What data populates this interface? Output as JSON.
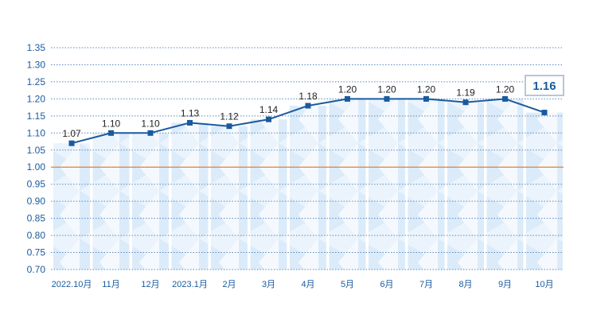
{
  "chart_data": {
    "type": "line",
    "categories": [
      "2022.10月",
      "11月",
      "12月",
      "2023.1月",
      "2月",
      "3月",
      "4月",
      "5月",
      "6月",
      "7月",
      "8月",
      "9月",
      "10月"
    ],
    "values": [
      1.07,
      1.1,
      1.1,
      1.13,
      1.12,
      1.14,
      1.18,
      1.2,
      1.2,
      1.2,
      1.19,
      1.2,
      1.16
    ],
    "data_labels": [
      "1.07",
      "1.10",
      "1.10",
      "1.13",
      "1.12",
      "1.14",
      "1.18",
      "1.20",
      "1.20",
      "1.20",
      "1.19",
      "1.20",
      "1.16"
    ],
    "y_ticks": [
      "1.35",
      "1.30",
      "1.25",
      "1.20",
      "1.15",
      "1.10",
      "1.05",
      "1.00",
      "0.95",
      "0.90",
      "0.85",
      "0.80",
      "0.75",
      "0.70"
    ],
    "ylim": [
      0.7,
      1.35
    ],
    "reference_line": 1.0,
    "title": "",
    "xlabel": "",
    "ylabel": "",
    "grid": "dotted-horizontal",
    "colors": {
      "line": "#1a5a9e",
      "marker": "#1a5a9e",
      "reference": "#e8843a",
      "grid": "#5a88c0",
      "axis_text": "#1a5a9e",
      "label_text": "#222222",
      "highlight_border": "#b8c6d6",
      "highlight_text": "#1a5a9e",
      "fill_light": "#e6f1fb",
      "fill_dark": "#cfe3f6"
    }
  }
}
